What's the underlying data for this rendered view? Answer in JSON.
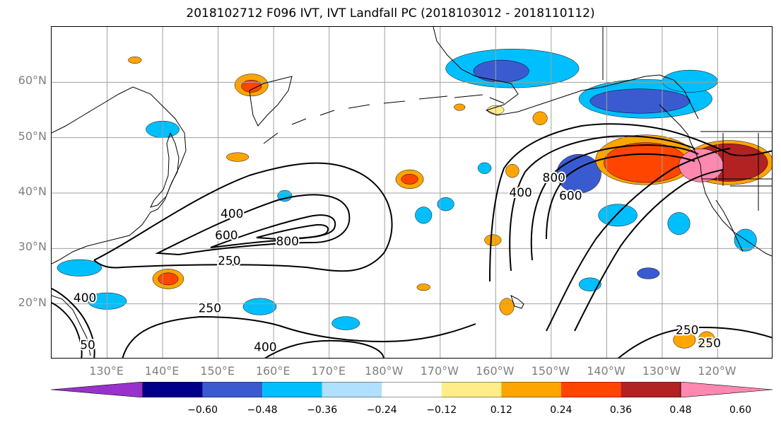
{
  "title": "2018102712 F096 IVT, IVT Landfall PC (2018103012 - 2018110112)",
  "lat_labels": [
    {
      "text": "60°N",
      "lat": 60
    },
    {
      "text": "50°N",
      "lat": 50
    },
    {
      "text": "40°N",
      "lat": 40
    },
    {
      "text": "30°N",
      "lat": 30
    },
    {
      "text": "20°N",
      "lat": 20
    }
  ],
  "lon_labels": [
    {
      "text": "130°E",
      "lon": 130
    },
    {
      "text": "140°E",
      "lon": 140
    },
    {
      "text": "150°E",
      "lon": 150
    },
    {
      "text": "160°E",
      "lon": 160
    },
    {
      "text": "170°E",
      "lon": 170
    },
    {
      "text": "180°W",
      "lon": 180
    },
    {
      "text": "170°W",
      "lon": 190
    },
    {
      "text": "160°W",
      "lon": 200
    },
    {
      "text": "150°W",
      "lon": 210
    },
    {
      "text": "140°W",
      "lon": 220
    },
    {
      "text": "130°W",
      "lon": 230
    },
    {
      "text": "120°W",
      "lon": 240
    }
  ],
  "extent": {
    "lon_min": 120,
    "lon_max": 250,
    "lat_min": 10,
    "lat_max": 70
  },
  "contour_labels": [
    {
      "text": "400",
      "lon": 152.5,
      "lat": 36.2
    },
    {
      "text": "600",
      "lon": 151.5,
      "lat": 32.3
    },
    {
      "text": "800",
      "lon": 162.5,
      "lat": 31.2
    },
    {
      "text": "250",
      "lon": 152.0,
      "lat": 27.7
    },
    {
      "text": "250",
      "lon": 148.5,
      "lat": 19.1
    },
    {
      "text": "400",
      "lon": 158.5,
      "lat": 12.1
    },
    {
      "text": "400",
      "lon": 204.5,
      "lat": 40.0
    },
    {
      "text": "800",
      "lon": 210.5,
      "lat": 42.7
    },
    {
      "text": "600",
      "lon": 213.5,
      "lat": 39.4
    },
    {
      "text": "250",
      "lon": 234.5,
      "lat": 15.2
    },
    {
      "text": "250",
      "lon": 238.5,
      "lat": 12.8
    },
    {
      "text": "400",
      "lon": 126.0,
      "lat": 21.0
    },
    {
      "text": "50",
      "lon": 126.5,
      "lat": 12.5
    }
  ],
  "colorbar": {
    "colors": [
      "#9932cc",
      "#00008b",
      "#3a5bd0",
      "#00bfff",
      "#b0e0ff",
      "#ffffff",
      "#ffee88",
      "#ffa500",
      "#ff4500",
      "#b22222",
      "#ff88b0"
    ],
    "ticks": [
      "−0.60",
      "−0.48",
      "−0.36",
      "−0.24",
      "−0.12",
      "0.12",
      "0.24",
      "0.36",
      "0.48",
      "0.60"
    ]
  },
  "shaded_blobs": [
    {
      "lon": 203,
      "lat": 62.5,
      "rx": 12,
      "ry": 3.5,
      "color": "#00bfff"
    },
    {
      "lon": 201,
      "lat": 62.0,
      "rx": 5,
      "ry": 2,
      "color": "#3a5bd0"
    },
    {
      "lon": 227,
      "lat": 57.0,
      "rx": 12,
      "ry": 3.5,
      "color": "#00bfff"
    },
    {
      "lon": 226,
      "lat": 56.6,
      "rx": 9,
      "ry": 2.2,
      "color": "#3a5bd0"
    },
    {
      "lon": 235,
      "lat": 60.2,
      "rx": 5,
      "ry": 2,
      "color": "#00bfff"
    },
    {
      "lon": 215,
      "lat": 43.5,
      "rx": 4,
      "ry": 3.5,
      "color": "#3a5bd0"
    },
    {
      "lon": 227,
      "lat": 46.0,
      "rx": 9,
      "ry": 4.5,
      "color": "#ffa500"
    },
    {
      "lon": 227,
      "lat": 45.5,
      "rx": 7.5,
      "ry": 3.6,
      "color": "#ff4500"
    },
    {
      "lon": 242,
      "lat": 45.5,
      "rx": 8,
      "ry": 4,
      "color": "#ffa500"
    },
    {
      "lon": 242,
      "lat": 45.5,
      "rx": 7,
      "ry": 3.4,
      "color": "#b22222"
    },
    {
      "lon": 237,
      "lat": 45.0,
      "rx": 4,
      "ry": 3,
      "color": "#ff88b0"
    },
    {
      "lon": 156,
      "lat": 59.5,
      "rx": 3,
      "ry": 2,
      "color": "#ffa500"
    },
    {
      "lon": 156,
      "lat": 59.3,
      "rx": 1.8,
      "ry": 1.1,
      "color": "#ff4500"
    },
    {
      "lon": 184.5,
      "lat": 42.5,
      "rx": 2.5,
      "ry": 1.7,
      "color": "#ffa500"
    },
    {
      "lon": 184.5,
      "lat": 42.5,
      "rx": 1.5,
      "ry": 0.9,
      "color": "#ff4500"
    },
    {
      "lon": 141,
      "lat": 24.5,
      "rx": 2.8,
      "ry": 1.8,
      "color": "#ffa500"
    },
    {
      "lon": 141,
      "lat": 24.5,
      "rx": 1.8,
      "ry": 1.1,
      "color": "#ff4500"
    },
    {
      "lon": 222,
      "lat": 36.0,
      "rx": 3.5,
      "ry": 2,
      "color": "#00bfff"
    },
    {
      "lon": 233,
      "lat": 34.5,
      "rx": 2,
      "ry": 2,
      "color": "#00bfff"
    },
    {
      "lon": 245,
      "lat": 31.5,
      "rx": 2,
      "ry": 2,
      "color": "#00bfff"
    },
    {
      "lon": 227.5,
      "lat": 25.5,
      "rx": 2,
      "ry": 1,
      "color": "#3a5bd0"
    },
    {
      "lon": 234,
      "lat": 13.5,
      "rx": 2,
      "ry": 1.5,
      "color": "#ffa500"
    },
    {
      "lon": 238,
      "lat": 13.5,
      "rx": 1.5,
      "ry": 1.5,
      "color": "#ffa500"
    },
    {
      "lon": 140,
      "lat": 51.5,
      "rx": 3,
      "ry": 1.5,
      "color": "#00bfff"
    },
    {
      "lon": 125,
      "lat": 26.5,
      "rx": 4,
      "ry": 1.5,
      "color": "#00bfff"
    },
    {
      "lon": 130,
      "lat": 20.5,
      "rx": 3.5,
      "ry": 1.5,
      "color": "#00bfff"
    },
    {
      "lon": 157.5,
      "lat": 19.5,
      "rx": 3,
      "ry": 1.5,
      "color": "#00bfff"
    },
    {
      "lon": 173,
      "lat": 16.5,
      "rx": 2.5,
      "ry": 1.2,
      "color": "#00bfff"
    },
    {
      "lon": 187,
      "lat": 36.0,
      "rx": 1.5,
      "ry": 1.5,
      "color": "#00bfff"
    },
    {
      "lon": 191,
      "lat": 38.0,
      "rx": 1.5,
      "ry": 1.2,
      "color": "#00bfff"
    },
    {
      "lon": 199.5,
      "lat": 31.5,
      "rx": 1.5,
      "ry": 1,
      "color": "#ffa500"
    },
    {
      "lon": 187,
      "lat": 23.0,
      "rx": 1.2,
      "ry": 0.6,
      "color": "#ffa500"
    },
    {
      "lon": 193.5,
      "lat": 55.5,
      "rx": 1,
      "ry": 0.6,
      "color": "#ffa500"
    },
    {
      "lon": 200,
      "lat": 55.0,
      "rx": 1.5,
      "ry": 0.8,
      "color": "#ffee88"
    },
    {
      "lon": 208,
      "lat": 53.5,
      "rx": 1.3,
      "ry": 1.2,
      "color": "#ffa500"
    },
    {
      "lon": 153.5,
      "lat": 46.5,
      "rx": 2,
      "ry": 0.8,
      "color": "#ffa500"
    },
    {
      "lon": 135,
      "lat": 64.0,
      "rx": 1.2,
      "ry": 0.6,
      "color": "#ffa500"
    },
    {
      "lon": 203,
      "lat": 44.0,
      "rx": 1.2,
      "ry": 1.2,
      "color": "#ffa500"
    },
    {
      "lon": 198,
      "lat": 44.5,
      "rx": 1.2,
      "ry": 1,
      "color": "#00bfff"
    },
    {
      "lon": 162,
      "lat": 39.5,
      "rx": 1.3,
      "ry": 1,
      "color": "#00bfff"
    },
    {
      "lon": 202,
      "lat": 19.5,
      "rx": 1.3,
      "ry": 1.5,
      "color": "#ffa500"
    },
    {
      "lon": 217,
      "lat": 23.5,
      "rx": 2,
      "ry": 1.2,
      "color": "#00bfff"
    }
  ]
}
